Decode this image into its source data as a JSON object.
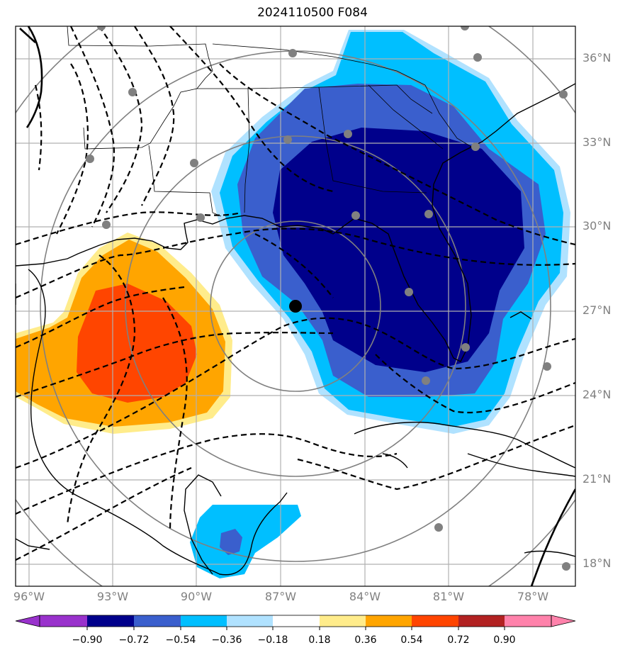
{
  "title": "2024110500 F084",
  "lat_labels": [
    "36°N",
    "33°N",
    "30°N",
    "27°N",
    "24°N",
    "21°N",
    "18°N"
  ],
  "lon_labels": [
    "96°W",
    "93°W",
    "90°W",
    "87°W",
    "84°W",
    "81°W",
    "78°W"
  ],
  "colorbar": {
    "ticks": [
      "−0.90",
      "−0.72",
      "−0.54",
      "−0.36",
      "−0.18",
      "0.18",
      "0.36",
      "0.54",
      "0.72",
      "0.90"
    ],
    "colors": [
      "#9932CC",
      "#00008B",
      "#3A5FCD",
      "#00BFFF",
      "#B0E2FF",
      "#FFFFFF",
      "#FFEC8B",
      "#FFA500",
      "#FF4500",
      "#B22222",
      "#FF82AB"
    ]
  },
  "fill_colors": {
    "darkblue": "#00008B",
    "blue": "#3A5FCD",
    "deepskyblue": "#00BFFF",
    "lightblue": "#B0E2FF",
    "lightyellow": "#FFEC8B",
    "orange": "#FFA500",
    "orangered": "#FF4500"
  }
}
